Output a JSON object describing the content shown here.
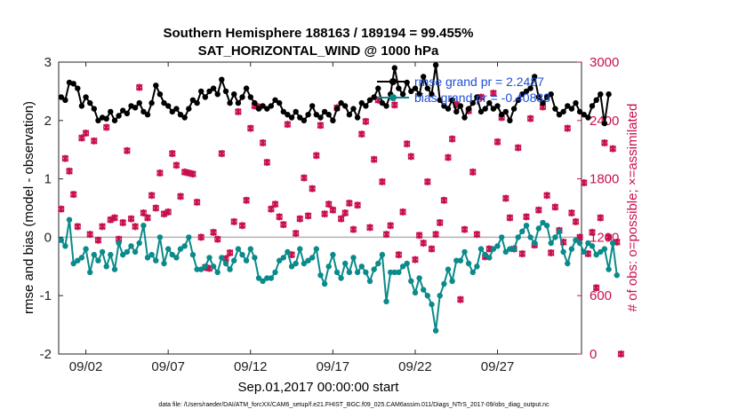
{
  "chart_data": {
    "type": "line",
    "title": "Southern Hemisphere 188163 / 189194 = 99.455%",
    "subtitle": "SAT_HORIZONTAL_WIND @ 1000 hPa",
    "xlabel": "Sep.01,2017 00:00:00 start",
    "ylabel_left": "rmse and bias (model - observation)",
    "ylabel_right": "# of obs: o=possible; ×=assimilated",
    "xlim": [
      0.35,
      32.1
    ],
    "ylim_left": [
      -2,
      3
    ],
    "ylim_right": [
      0,
      3000
    ],
    "x_ticks": [
      {
        "pos": 2,
        "label": "09/02"
      },
      {
        "pos": 7,
        "label": "09/07"
      },
      {
        "pos": 12,
        "label": "09/12"
      },
      {
        "pos": 17,
        "label": "09/17"
      },
      {
        "pos": 22,
        "label": "09/22"
      },
      {
        "pos": 27,
        "label": "09/27"
      }
    ],
    "y_ticks_left": [
      "-2",
      "-1",
      "0",
      "1",
      "2",
      "3"
    ],
    "y_ticks_right": [
      "0",
      "600",
      "1200",
      "1800",
      "2400",
      "3000"
    ],
    "grid": false,
    "zero_line": 0,
    "legend": {
      "position": "top-right",
      "entries": [
        "rmse grand pr = 2.2487",
        "bias grand pr = -0.40883"
      ]
    },
    "footer": "data file: /Users/raeder/DAI/ATM_forcXX/CAM6_setup/f.e21.FHIST_BGC.f09_025.CAM6assim.011/Diags_NTrS_2017-09/obs_diag_output.nc",
    "series": [
      {
        "name": "rmse",
        "color": "#000000",
        "marker": "circle",
        "axis": "left",
        "x0": 0.5,
        "dx": 0.25,
        "values": [
          2.4,
          2.35,
          2.65,
          2.63,
          2.55,
          2.25,
          2.4,
          2.3,
          2.2,
          2.0,
          2.05,
          2.03,
          2.15,
          2.0,
          2.08,
          2.17,
          2.12,
          2.25,
          2.22,
          2.3,
          2.15,
          2.1,
          2.3,
          2.6,
          2.45,
          2.3,
          2.25,
          2.15,
          2.2,
          2.1,
          2.05,
          2.2,
          2.35,
          2.3,
          2.5,
          2.4,
          2.5,
          2.55,
          2.45,
          2.7,
          2.5,
          2.3,
          2.45,
          2.3,
          2.4,
          2.55,
          2.4,
          2.3,
          2.2,
          2.25,
          2.2,
          2.25,
          2.35,
          2.3,
          2.15,
          2.1,
          2.05,
          2.15,
          2.05,
          2.0,
          2.1,
          2.25,
          2.1,
          2.05,
          2.15,
          2.1,
          2.0,
          2.2,
          2.3,
          2.25,
          2.1,
          2.2,
          2.05,
          2.3,
          2.25,
          2.35,
          2.4,
          2.55,
          2.3,
          2.25,
          2.45,
          2.9,
          2.55,
          2.45,
          2.65,
          2.5,
          2.55,
          2.45,
          2.75,
          2.55,
          2.45,
          2.95,
          2.35,
          2.25,
          2.2,
          2.35,
          2.15,
          2.25,
          2.05,
          2.2,
          2.3,
          2.4,
          2.15,
          2.2,
          2.3,
          2.2,
          2.25,
          2.1,
          2.15,
          2.0,
          2.2,
          2.35,
          2.45,
          2.5,
          2.55,
          2.75,
          2.4,
          2.3,
          2.4,
          2.45,
          2.2,
          2.1,
          2.15,
          2.25,
          2.2,
          2.3,
          2.15,
          2.1,
          2.05,
          2.25,
          2.35,
          2.45,
          1.95,
          2.45
        ]
      },
      {
        "name": "bias",
        "color": "#0a8a8a",
        "marker": "circle",
        "axis": "left",
        "x0": 0.5,
        "dx": 0.25,
        "values": [
          -0.05,
          -0.15,
          0.3,
          -0.45,
          -0.4,
          -0.35,
          -0.2,
          -0.6,
          -0.3,
          -0.4,
          -0.25,
          -0.5,
          -0.3,
          -0.55,
          -0.1,
          -0.3,
          -0.25,
          -0.15,
          -0.25,
          -0.1,
          0.2,
          -0.35,
          -0.3,
          -0.4,
          0.0,
          -0.45,
          -0.2,
          -0.3,
          -0.35,
          -0.2,
          -0.15,
          0.0,
          -0.3,
          -0.55,
          -0.55,
          -0.5,
          -0.35,
          -0.5,
          -0.6,
          -0.35,
          -0.45,
          -0.55,
          -0.4,
          -0.2,
          -0.3,
          -0.4,
          -0.2,
          -0.35,
          -0.7,
          -0.75,
          -0.7,
          -0.7,
          -0.6,
          -0.4,
          -0.35,
          -0.25,
          -0.5,
          -0.45,
          -0.2,
          -0.45,
          -0.4,
          -0.35,
          -0.2,
          -0.65,
          -0.8,
          -0.5,
          -0.3,
          -0.6,
          -0.7,
          -0.45,
          -0.6,
          -0.35,
          -0.6,
          -0.5,
          -0.6,
          -0.75,
          -0.55,
          -0.45,
          -0.3,
          -1.1,
          -0.6,
          -0.6,
          -0.6,
          -0.5,
          -0.45,
          -0.75,
          -0.95,
          -0.7,
          -0.9,
          -1.0,
          -1.15,
          -1.6,
          -1.0,
          -0.8,
          -0.55,
          -0.75,
          -0.4,
          -0.4,
          -0.25,
          -0.45,
          -0.6,
          -0.5,
          -0.2,
          -0.3,
          -0.35,
          -0.2,
          -0.15,
          0.0,
          -0.25,
          -0.2,
          -0.2,
          0.0,
          0.1,
          0.2,
          0.0,
          -0.1,
          0.15,
          0.25,
          0.2,
          -0.1,
          0.0,
          0.1,
          -0.25,
          -0.45,
          -0.2,
          -0.05,
          -0.1,
          -0.25,
          -0.1,
          -0.15,
          -0.3,
          -0.25,
          -0.2,
          -0.55,
          -0.1,
          -0.65
        ]
      },
      {
        "name": "obs_possible",
        "color": "#c8104e",
        "marker": "circle",
        "axis": "right",
        "x0": 0.5,
        "dx": 0.25,
        "values": [
          1490,
          2010,
          1880,
          1640,
          1310,
          2220,
          2270,
          1230,
          2190,
          1170,
          1310,
          2330,
          1380,
          1400,
          1180,
          1350,
          2090,
          1390,
          1310,
          2740,
          1450,
          1400,
          1630,
          1500,
          1860,
          1440,
          1460,
          2060,
          1940,
          1620,
          1870,
          1860,
          1850,
          1560,
          1200,
          890,
          880,
          1250,
          1180,
          2060,
          980,
          1040,
          1360,
          2490,
          1320,
          1580,
          2320,
          2550,
          2540,
          2170,
          1970,
          1490,
          1540,
          1410,
          1330,
          2360,
          1020,
          1240,
          1390,
          1810,
          1420,
          1700,
          2040,
          2350,
          1440,
          1540,
          1480,
          2530,
          1390,
          1450,
          1550,
          1280,
          1530,
          2260,
          2390,
          1300,
          2000,
          2610,
          1770,
          1230,
          1320,
          2560,
          1020,
          1460,
          2160,
          2030,
          970,
          1220,
          1140,
          1770,
          1080,
          1230,
          1350,
          1580,
          2020,
          2210,
          2560,
          560,
          1280,
          2500,
          1870,
          1230,
          2640,
          1000,
          1080,
          2680,
          2180,
          2430,
          1600,
          1400,
          1080,
          2120,
          1030,
          1410,
          2420,
          1120,
          1480,
          2540,
          1630,
          1040,
          1510,
          1270,
          1150,
          2320,
          1450,
          1360,
          1200,
          1760,
          1030,
          1250,
          680,
          1400,
          2170,
          1200,
          2110,
          1150,
          0
        ]
      },
      {
        "name": "obs_assimilated",
        "color": "#c8104e",
        "marker": "x",
        "axis": "right",
        "x0": 0.5,
        "dx": 0.25,
        "values": [
          1490,
          2010,
          1880,
          1640,
          1310,
          2220,
          2270,
          1230,
          2190,
          1170,
          1310,
          2330,
          1380,
          1400,
          1180,
          1350,
          2090,
          1390,
          1310,
          2740,
          1450,
          1400,
          1630,
          1500,
          1860,
          1440,
          1460,
          2060,
          1940,
          1620,
          1870,
          1860,
          1850,
          1560,
          1200,
          890,
          880,
          1250,
          1180,
          2060,
          980,
          1040,
          1360,
          2490,
          1320,
          1580,
          2320,
          2550,
          2540,
          2170,
          1970,
          1490,
          1540,
          1410,
          1330,
          2360,
          1020,
          1240,
          1390,
          1810,
          1420,
          1700,
          2040,
          2350,
          1440,
          1540,
          1480,
          2530,
          1390,
          1450,
          1550,
          1280,
          1530,
          2260,
          2390,
          1300,
          2000,
          2610,
          1770,
          1230,
          1320,
          2560,
          1020,
          1460,
          2160,
          2030,
          970,
          1220,
          1140,
          1770,
          1080,
          1230,
          1350,
          1580,
          2020,
          2210,
          2560,
          560,
          1280,
          2500,
          1870,
          1230,
          2640,
          1000,
          1080,
          2680,
          2180,
          2430,
          1600,
          1400,
          1080,
          2120,
          1030,
          1410,
          2420,
          1120,
          1480,
          2540,
          1630,
          1040,
          1510,
          1270,
          1150,
          2320,
          1450,
          1360,
          1200,
          1760,
          1030,
          1250,
          680,
          1400,
          2170,
          1200,
          2110,
          1150,
          0
        ]
      }
    ]
  }
}
